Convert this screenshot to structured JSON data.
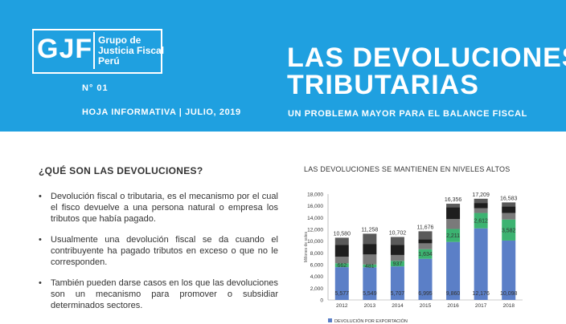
{
  "header": {
    "logo_text": "GJF",
    "logo_lines": [
      "Grupo de",
      "Justicia Fiscal",
      "Perú"
    ],
    "issue": "N° 01",
    "hoja": "HOJA INFORMATIVA | JULIO, 2019",
    "title_line1": "LAS DEVOLUCIONES",
    "title_line2": "TRIBUTARIAS",
    "subtitle": "UN PROBLEMA MAYOR PARA EL BALANCE FISCAL",
    "bg_color": "#1fa0e0"
  },
  "body": {
    "question": "¿QUÉ SON LAS DEVOLUCIONES?",
    "bullets": [
      "Devolución fiscal o tributaria, es el mecanismo por el cual el fisco devuelve a una persona natural o empresa los tributos que había pagado.",
      "Usualmente una devolución fiscal se da cuando el contribuyente ha pagado tributos en exceso o que no le corresponden.",
      "También pueden darse casos en los que las devoluciones son un mecanismo para promover o subsidiar determinados sectores."
    ]
  },
  "chart_data": {
    "type": "bar",
    "stacked": true,
    "title": "LAS DEVOLUCIONES SE MANTIENEN EN NIVELES ALTOS",
    "ylabel": "Millones de soles",
    "xlabel": "",
    "ylim": [
      0,
      18000
    ],
    "yticks": [
      0,
      2000,
      4000,
      6000,
      8000,
      10000,
      12000,
      14000,
      16000,
      18000
    ],
    "ytick_labels": [
      "0",
      "2,000",
      "4,000",
      "6,000",
      "8,000",
      "10,000",
      "12,000",
      "14,000",
      "16,000",
      "18,000"
    ],
    "categories": [
      "2012",
      "2013",
      "2014",
      "2015",
      "2016",
      "2017",
      "2018"
    ],
    "totals": [
      10580,
      11258,
      10702,
      11676,
      16356,
      17209,
      16583
    ],
    "total_labels": [
      "10,580",
      "11,258",
      "10,702",
      "11,676",
      "16,356",
      "17,209",
      "16,583"
    ],
    "series": [
      {
        "name": "DEVOLUCIÓN POR EXPORTACIÓN",
        "values": [
          5577,
          5549,
          5707,
          6995,
          9860,
          12176,
          10098
        ],
        "labels": [
          "5,577",
          "5,549",
          "5,707",
          "6,995",
          "9,860",
          "12,176",
          "10,098"
        ],
        "color": "#5b7fc7"
      },
      {
        "values": [
          662,
          481,
          937,
          1634,
          2211,
          2612,
          3582
        ],
        "labels": [
          "662",
          "481",
          "937",
          "1,634",
          "2,211",
          "2,612",
          "3,582"
        ],
        "color": "#3cb371"
      },
      {
        "values": [
          1100,
          1700,
          1000,
          1000,
          1700,
          800,
          1100
        ],
        "color": "#7a7a7a"
      },
      {
        "values": [
          2000,
          1800,
          1700,
          700,
          2000,
          900,
          1100
        ],
        "color": "#1e1e1e"
      },
      {
        "values": [
          1241,
          1728,
          1358,
          1347,
          585,
          721,
          703
        ],
        "color": "#5a5a5a"
      }
    ],
    "legend": "bottom",
    "grid": false
  }
}
